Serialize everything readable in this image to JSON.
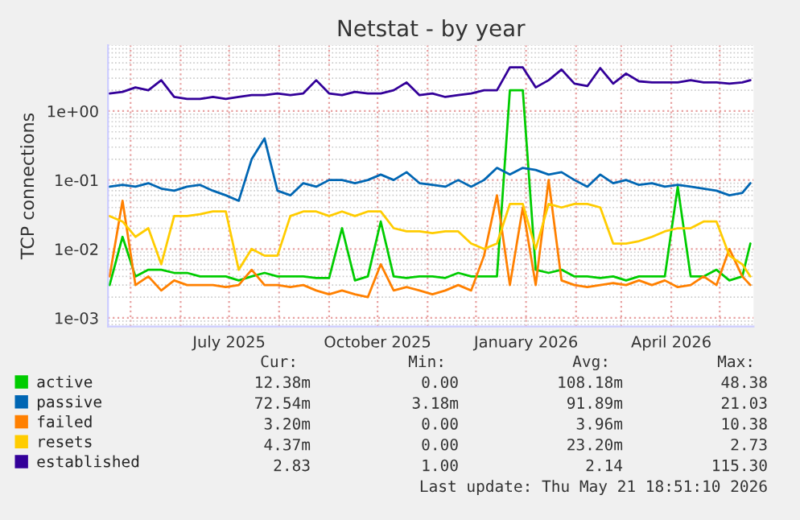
{
  "chart_data": {
    "type": "line",
    "title": "Netstat - by year",
    "ylabel": "TCP connections",
    "log": "y",
    "grid": true,
    "legend": "bottom left",
    "marker": "none",
    "line_style": "solid",
    "x": [
      "2025-04-18",
      "2025-04-26",
      "2025-05-04",
      "2025-05-12",
      "2025-05-20",
      "2025-05-28",
      "2025-06-05",
      "2025-06-13",
      "2025-06-21",
      "2025-06-29",
      "2025-07-07",
      "2025-07-15",
      "2025-07-23",
      "2025-07-31",
      "2025-08-08",
      "2025-08-16",
      "2025-08-24",
      "2025-09-01",
      "2025-09-09",
      "2025-09-17",
      "2025-09-25",
      "2025-10-03",
      "2025-10-11",
      "2025-10-19",
      "2025-10-27",
      "2025-11-04",
      "2025-11-12",
      "2025-11-20",
      "2025-11-28",
      "2025-12-06",
      "2025-12-14",
      "2025-12-22",
      "2025-12-30",
      "2026-01-07",
      "2026-01-15",
      "2026-01-23",
      "2026-01-31",
      "2026-02-08",
      "2026-02-16",
      "2026-02-24",
      "2026-03-04",
      "2026-03-12",
      "2026-03-20",
      "2026-03-28",
      "2026-04-05",
      "2026-04-13",
      "2026-04-21",
      "2026-04-29",
      "2026-05-07",
      "2026-05-15",
      "2026-05-20"
    ],
    "series": [
      {
        "name": "active",
        "color": "#00cc00",
        "values": [
          0.003,
          0.015,
          0.004,
          0.005,
          0.005,
          0.0045,
          0.0045,
          0.004,
          0.004,
          0.004,
          0.0035,
          0.004,
          0.0045,
          0.004,
          0.004,
          0.004,
          0.0038,
          0.0038,
          0.02,
          0.0035,
          0.004,
          0.025,
          0.004,
          0.0038,
          0.004,
          0.004,
          0.0038,
          0.0045,
          0.004,
          0.004,
          0.004,
          2.0,
          2.0,
          0.005,
          0.0045,
          0.005,
          0.004,
          0.004,
          0.0038,
          0.004,
          0.0035,
          0.004,
          0.004,
          0.004,
          0.08,
          0.004,
          0.004,
          0.005,
          0.0035,
          0.004,
          0.012
        ]
      },
      {
        "name": "passive",
        "color": "#0066b3",
        "values": [
          0.08,
          0.085,
          0.08,
          0.09,
          0.075,
          0.07,
          0.08,
          0.085,
          0.07,
          0.06,
          0.05,
          0.2,
          0.4,
          0.07,
          0.06,
          0.09,
          0.08,
          0.1,
          0.1,
          0.09,
          0.1,
          0.12,
          0.1,
          0.13,
          0.09,
          0.085,
          0.08,
          0.1,
          0.08,
          0.1,
          0.15,
          0.12,
          0.15,
          0.14,
          0.12,
          0.13,
          0.1,
          0.08,
          0.12,
          0.09,
          0.1,
          0.085,
          0.09,
          0.08,
          0.085,
          0.08,
          0.075,
          0.07,
          0.06,
          0.065,
          0.09
        ]
      },
      {
        "name": "failed",
        "color": "#ff8000",
        "values": [
          0.004,
          0.05,
          0.003,
          0.004,
          0.0025,
          0.0035,
          0.003,
          0.003,
          0.003,
          0.0028,
          0.003,
          0.005,
          0.003,
          0.003,
          0.0028,
          0.003,
          0.0025,
          0.0022,
          0.0025,
          0.0022,
          0.002,
          0.006,
          0.0025,
          0.0028,
          0.0025,
          0.0022,
          0.0025,
          0.003,
          0.0025,
          0.008,
          0.06,
          0.003,
          0.04,
          0.003,
          0.1,
          0.0035,
          0.003,
          0.0028,
          0.003,
          0.0032,
          0.003,
          0.0035,
          0.003,
          0.0035,
          0.0028,
          0.003,
          0.004,
          0.003,
          0.01,
          0.004,
          0.003
        ]
      },
      {
        "name": "resets",
        "color": "#ffcc00",
        "values": [
          0.03,
          0.025,
          0.015,
          0.02,
          0.006,
          0.03,
          0.03,
          0.032,
          0.035,
          0.035,
          0.005,
          0.01,
          0.008,
          0.008,
          0.03,
          0.035,
          0.035,
          0.03,
          0.035,
          0.03,
          0.035,
          0.035,
          0.02,
          0.018,
          0.018,
          0.017,
          0.018,
          0.018,
          0.012,
          0.01,
          0.012,
          0.045,
          0.045,
          0.01,
          0.045,
          0.04,
          0.045,
          0.045,
          0.04,
          0.012,
          0.012,
          0.013,
          0.015,
          0.018,
          0.02,
          0.02,
          0.025,
          0.025,
          0.008,
          0.006,
          0.004
        ]
      },
      {
        "name": "established",
        "color": "#330099",
        "values": [
          1.8,
          1.9,
          2.2,
          2.0,
          2.8,
          1.6,
          1.5,
          1.5,
          1.6,
          1.5,
          1.6,
          1.7,
          1.7,
          1.8,
          1.7,
          1.8,
          2.8,
          1.8,
          1.7,
          1.9,
          1.8,
          1.8,
          2.0,
          2.6,
          1.7,
          1.8,
          1.6,
          1.7,
          1.8,
          2.0,
          2.0,
          4.3,
          4.3,
          2.2,
          2.8,
          4.0,
          2.5,
          2.3,
          4.2,
          2.5,
          3.5,
          2.7,
          2.6,
          2.6,
          2.6,
          2.8,
          2.6,
          2.6,
          2.5,
          2.6,
          2.8
        ]
      }
    ],
    "xlim": [
      "2025-04-17",
      "2026-05-22"
    ],
    "xticks": [
      {
        "value": "2025-05-01",
        "label": null
      },
      {
        "value": "2025-06-01",
        "label": null
      },
      {
        "value": "2025-07-01",
        "label": "July 2025"
      },
      {
        "value": "2025-08-01",
        "label": null
      },
      {
        "value": "2025-09-01",
        "label": null
      },
      {
        "value": "2025-10-01",
        "label": "October 2025"
      },
      {
        "value": "2025-11-01",
        "label": null
      },
      {
        "value": "2025-12-01",
        "label": null
      },
      {
        "value": "2026-01-01",
        "label": "January 2026"
      },
      {
        "value": "2026-02-01",
        "label": null
      },
      {
        "value": "2026-03-01",
        "label": null
      },
      {
        "value": "2026-04-01",
        "label": "April 2026"
      },
      {
        "value": "2026-05-01",
        "label": null
      }
    ],
    "ylim": [
      0.00075,
      9
    ],
    "yticks": [
      {
        "value": 0.001,
        "label": "1e-03"
      },
      {
        "value": 0.01,
        "label": "1e-02"
      },
      {
        "value": 0.1,
        "label": "1e-01"
      },
      {
        "value": 1,
        "label": "1e+00"
      }
    ],
    "annotations": [
      "Cur:",
      "Min:",
      "Avg:",
      "Max:",
      "12.38m",
      "0.00",
      "108.18m",
      "48.38",
      "72.54m",
      "3.18m",
      "91.89m",
      "21.03",
      "3.20m",
      "0.00",
      "3.96m",
      "10.38",
      "4.37m",
      "0.00",
      "23.20m",
      "2.73",
      "2.83",
      "1.00",
      "2.14",
      "115.30",
      "Last update: Thu May 21 18:51:10 2026"
    ]
  }
}
